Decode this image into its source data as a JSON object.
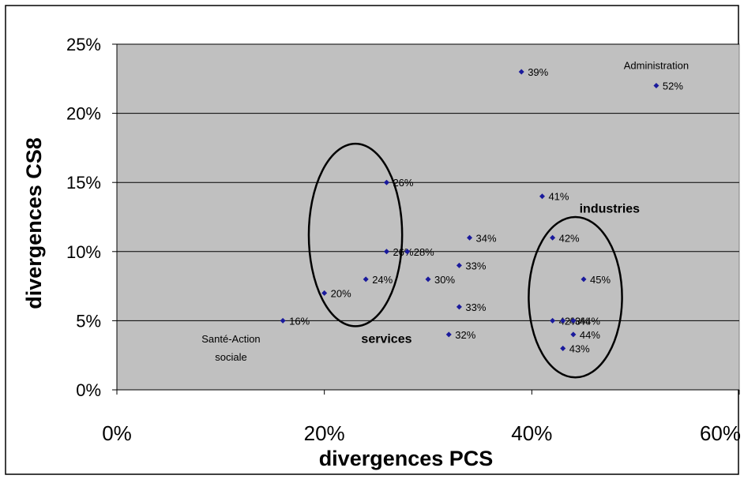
{
  "chart_data": {
    "type": "scatter",
    "xlabel": "divergences PCS",
    "ylabel": "divergences CS8",
    "xlim": [
      0,
      60
    ],
    "ylim": [
      0,
      25
    ],
    "xticks": [
      0,
      20,
      40,
      60
    ],
    "yticks": [
      0,
      5,
      10,
      15,
      20,
      25
    ],
    "x_tick_labels": [
      "0%",
      "20%",
      "40%",
      "60%"
    ],
    "y_tick_labels": [
      "0%",
      "5%",
      "10%",
      "15%",
      "20%",
      "25%"
    ],
    "grid": "horizontal",
    "marker_color": "#1a1a9c",
    "plot_background": "#c0c0c0",
    "points": [
      {
        "x": 16,
        "y": 5,
        "label": "16%"
      },
      {
        "x": 20,
        "y": 7,
        "label": "20%"
      },
      {
        "x": 24,
        "y": 8,
        "label": "24%"
      },
      {
        "x": 26,
        "y": 15,
        "label": "26%"
      },
      {
        "x": 26,
        "y": 10,
        "label": "26%"
      },
      {
        "x": 28,
        "y": 10,
        "label": "28%"
      },
      {
        "x": 30,
        "y": 8,
        "label": "30%"
      },
      {
        "x": 32,
        "y": 4,
        "label": "32%"
      },
      {
        "x": 33,
        "y": 9,
        "label": "33%"
      },
      {
        "x": 33,
        "y": 6,
        "label": "33%"
      },
      {
        "x": 34,
        "y": 11,
        "label": "34%"
      },
      {
        "x": 39,
        "y": 23,
        "label": "39%"
      },
      {
        "x": 41,
        "y": 14,
        "label": "41%"
      },
      {
        "x": 42,
        "y": 11,
        "label": "42%"
      },
      {
        "x": 42,
        "y": 5,
        "label": "42%"
      },
      {
        "x": 43,
        "y": 5,
        "label": "43%"
      },
      {
        "x": 43,
        "y": 3,
        "label": "43%"
      },
      {
        "x": 44,
        "y": 4,
        "label": "44%"
      },
      {
        "x": 44,
        "y": 5,
        "label": "44%"
      },
      {
        "x": 45,
        "y": 8,
        "label": "45%"
      },
      {
        "x": 52,
        "y": 22,
        "label": "52%"
      }
    ],
    "annotations": [
      {
        "text": "Administration",
        "x": 52,
        "y": 23.5
      },
      {
        "text": "Santé-Action",
        "x": 11,
        "y": 3.7
      },
      {
        "text": "sociale",
        "x": 11,
        "y": 2.4
      }
    ],
    "groups": [
      {
        "label": "services",
        "cx": 23,
        "cy": 11.2,
        "rx": 4.5,
        "ry": 6.6,
        "label_x": 26,
        "label_y": 3.4
      },
      {
        "label": "industries",
        "cx": 44.2,
        "cy": 6.7,
        "rx": 4.5,
        "ry": 5.8,
        "label_x": 47.5,
        "label_y": 12.8
      }
    ]
  }
}
